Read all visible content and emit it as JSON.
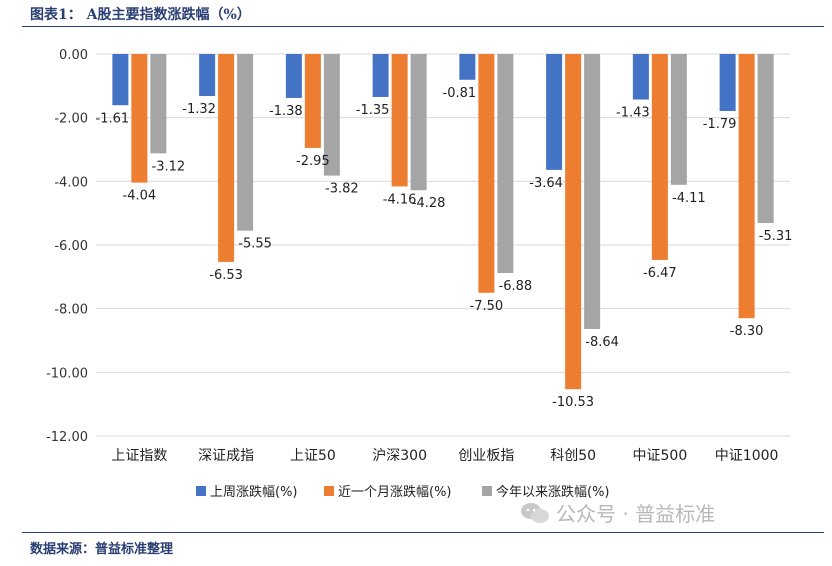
{
  "header": {
    "title": "图表1：  A股主要指数涨跌幅（%）"
  },
  "footer": {
    "source": "数据来源：普益标准整理"
  },
  "watermark": {
    "text": "公众号 · 普益标准"
  },
  "colors": {
    "series1": "#4472c4",
    "series2": "#ed7d31",
    "series3": "#a5a5a5",
    "rule": "#2a3f73"
  },
  "chart_data": {
    "type": "bar",
    "categories": [
      "上证指数",
      "深证成指",
      "上证50",
      "沪深300",
      "创业板指",
      "科创50",
      "中证500",
      "中证1000"
    ],
    "series": [
      {
        "name": "上周涨跌幅(%)",
        "values": [
          -1.61,
          -1.32,
          -1.38,
          -1.35,
          -0.81,
          -3.64,
          -1.43,
          -1.79
        ]
      },
      {
        "name": "近一个月涨跌幅(%)",
        "values": [
          -4.04,
          -6.53,
          -2.95,
          -4.16,
          -7.5,
          -10.53,
          -6.47,
          -8.3
        ]
      },
      {
        "name": "今年以来涨跌幅(%)",
        "values": [
          -3.12,
          -5.55,
          -3.82,
          -4.28,
          -6.88,
          -8.64,
          -4.11,
          -5.31
        ]
      }
    ],
    "y_ticks": [
      "0.00",
      "-2.00",
      "-4.00",
      "-6.00",
      "-8.00",
      "-10.00",
      "-12.00"
    ],
    "ylim": [
      -12,
      0
    ],
    "grid": true,
    "legend_position": "bottom"
  }
}
